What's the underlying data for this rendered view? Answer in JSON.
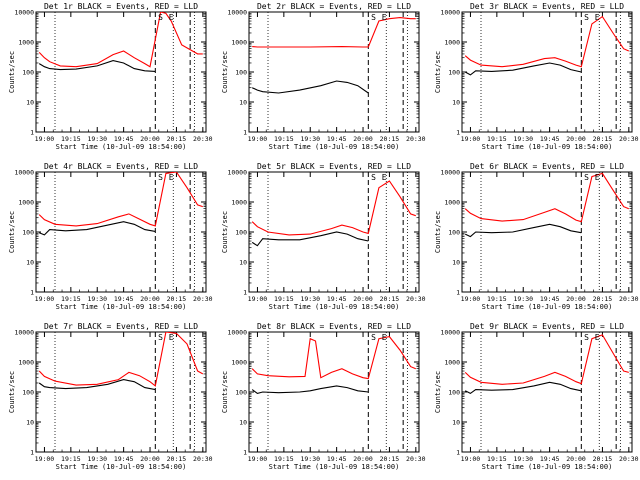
{
  "colors": {
    "events": "#000000",
    "lld": "#ff0000",
    "background": "#ffffff",
    "axes": "#000000"
  },
  "start_time_label": "Start Time (10-Jul-09 18:54:00)",
  "ylabel": "Counts/sec",
  "markers": {
    "s": "S",
    "e": "E"
  },
  "chart_data": [
    {
      "type": "line",
      "title": "Det 1r BLACK = Events, RED = LLD",
      "xlabel": "Start Time (10-Jul-09 18:54:00)",
      "ylabel": "Counts/sec",
      "y_scale": "log",
      "ylim": [
        1,
        10000
      ],
      "x_ticks": [
        "19:00",
        "19:15",
        "19:30",
        "19:45",
        "20:00",
        "20:15",
        "20:30"
      ],
      "y_ticks": [
        "1",
        "10",
        "100",
        "1000",
        "10000"
      ],
      "series": [
        {
          "name": "Events",
          "color": "#000000",
          "x": [
            18.95,
            19.0,
            19.05,
            19.15,
            19.3,
            19.5,
            19.65,
            19.75,
            19.85,
            19.95,
            20.05
          ],
          "y": [
            190,
            150,
            130,
            120,
            125,
            160,
            240,
            200,
            130,
            110,
            105
          ]
        },
        {
          "name": "LLD",
          "color": "#ff0000",
          "x": [
            18.95,
            19.0,
            19.05,
            19.15,
            19.3,
            19.5,
            19.65,
            19.75,
            19.85,
            19.95,
            20.0,
            20.1,
            20.15,
            20.2,
            20.3,
            20.45,
            20.5
          ],
          "y": [
            450,
            300,
            220,
            160,
            150,
            190,
            380,
            500,
            300,
            190,
            150,
            10000,
            9000,
            5000,
            800,
            400,
            400
          ]
        }
      ],
      "vlines_dotted": [
        19.1,
        20.22,
        20.42
      ],
      "vlines_dashed": [
        20.05,
        20.38
      ],
      "markers": [
        {
          "label": "S",
          "x": 20.1
        },
        {
          "label": "E",
          "x": 20.2
        }
      ]
    },
    {
      "type": "line",
      "title": "Det 2r BLACK = Events, RED = LLD",
      "xlabel": "Start Time (10-Jul-09 18:54:00)",
      "ylabel": "Counts/sec",
      "y_scale": "log",
      "ylim": [
        1,
        10000
      ],
      "x_ticks": [
        "19:00",
        "19:15",
        "19:30",
        "19:45",
        "20:00",
        "20:15",
        "20:30"
      ],
      "y_ticks": [
        "1",
        "10",
        "100",
        "1000",
        "10000"
      ],
      "series": [
        {
          "name": "Events",
          "color": "#000000",
          "x": [
            18.95,
            19.0,
            19.05,
            19.2,
            19.4,
            19.6,
            19.75,
            19.85,
            19.95,
            20.05
          ],
          "y": [
            30,
            25,
            22,
            20,
            25,
            35,
            50,
            45,
            35,
            20
          ]
        },
        {
          "name": "LLD",
          "color": "#ff0000",
          "x": [
            18.95,
            19.0,
            19.2,
            19.5,
            19.8,
            20.0,
            20.05,
            20.15,
            20.25,
            20.35,
            20.45,
            20.5
          ],
          "y": [
            700,
            680,
            680,
            680,
            700,
            680,
            680,
            5000,
            6000,
            6500,
            6000,
            6000
          ]
        }
      ],
      "vlines_dotted": [
        19.1,
        20.22,
        20.42
      ],
      "vlines_dashed": [
        20.05,
        20.38
      ],
      "markers": [
        {
          "label": "S",
          "x": 20.1
        },
        {
          "label": "E",
          "x": 20.2
        }
      ]
    },
    {
      "type": "line",
      "title": "Det 3r BLACK = Events, RED = LLD",
      "xlabel": "Start Time (10-Jul-09 18:54:00)",
      "ylabel": "Counts/sec",
      "y_scale": "log",
      "ylim": [
        1,
        10000
      ],
      "x_ticks": [
        "19:00",
        "19:15",
        "19:30",
        "19:45",
        "20:00",
        "20:15",
        "20:30"
      ],
      "y_ticks": [
        "1",
        "10",
        "100",
        "1000",
        "10000"
      ],
      "series": [
        {
          "name": "Events",
          "color": "#000000",
          "x": [
            18.95,
            19.0,
            19.05,
            19.2,
            19.4,
            19.6,
            19.75,
            19.85,
            19.95,
            20.05
          ],
          "y": [
            100,
            80,
            110,
            105,
            115,
            160,
            200,
            170,
            120,
            100
          ]
        },
        {
          "name": "LLD",
          "color": "#ff0000",
          "x": [
            18.95,
            19.0,
            19.1,
            19.3,
            19.5,
            19.7,
            19.8,
            19.9,
            20.0,
            20.05,
            20.15,
            20.25,
            20.35,
            20.45,
            20.5
          ],
          "y": [
            350,
            250,
            170,
            150,
            180,
            280,
            300,
            230,
            170,
            150,
            4000,
            7000,
            2000,
            600,
            500
          ]
        }
      ],
      "vlines_dotted": [
        19.1,
        20.22,
        20.42
      ],
      "vlines_dashed": [
        20.05,
        20.38
      ],
      "markers": [
        {
          "label": "S",
          "x": 20.1
        },
        {
          "label": "E",
          "x": 20.2
        }
      ]
    },
    {
      "type": "line",
      "title": "Det 4r BLACK = Events, RED = LLD",
      "xlabel": "Start Time (10-Jul-09 18:54:00)",
      "ylabel": "Counts/sec",
      "y_scale": "log",
      "ylim": [
        1,
        10000
      ],
      "x_ticks": [
        "19:00",
        "19:15",
        "19:30",
        "19:45",
        "20:00",
        "20:15",
        "20:30"
      ],
      "y_ticks": [
        "1",
        "10",
        "100",
        "1000",
        "10000"
      ],
      "series": [
        {
          "name": "Events",
          "color": "#000000",
          "x": [
            18.95,
            19.0,
            19.05,
            19.2,
            19.4,
            19.6,
            19.75,
            19.85,
            19.95,
            20.05
          ],
          "y": [
            95,
            80,
            120,
            110,
            120,
            170,
            220,
            180,
            120,
            105
          ]
        },
        {
          "name": "LLD",
          "color": "#ff0000",
          "x": [
            18.95,
            19.0,
            19.1,
            19.3,
            19.5,
            19.7,
            19.8,
            19.9,
            20.0,
            20.05,
            20.15,
            20.25,
            20.35,
            20.45,
            20.5
          ],
          "y": [
            380,
            260,
            180,
            160,
            190,
            320,
            400,
            270,
            180,
            160,
            9000,
            10000,
            3000,
            800,
            700
          ]
        }
      ],
      "vlines_dotted": [
        19.1,
        20.22,
        20.42
      ],
      "vlines_dashed": [
        20.05,
        20.38
      ],
      "markers": [
        {
          "label": "S",
          "x": 20.1
        },
        {
          "label": "E",
          "x": 20.2
        }
      ]
    },
    {
      "type": "line",
      "title": "Det 5r BLACK = Events, RED = LLD",
      "xlabel": "Start Time (10-Jul-09 18:54:00)",
      "ylabel": "Counts/sec",
      "y_scale": "log",
      "ylim": [
        1,
        10000
      ],
      "x_ticks": [
        "19:00",
        "19:15",
        "19:30",
        "19:45",
        "20:00",
        "20:15",
        "20:30"
      ],
      "y_ticks": [
        "1",
        "10",
        "100",
        "1000",
        "10000"
      ],
      "series": [
        {
          "name": "Events",
          "color": "#000000",
          "x": [
            18.95,
            19.0,
            19.05,
            19.2,
            19.4,
            19.6,
            19.75,
            19.85,
            19.95,
            20.05
          ],
          "y": [
            45,
            35,
            60,
            55,
            55,
            75,
            100,
            85,
            60,
            50
          ]
        },
        {
          "name": "LLD",
          "color": "#ff0000",
          "x": [
            18.95,
            19.0,
            19.1,
            19.3,
            19.5,
            19.7,
            19.8,
            19.9,
            20.0,
            20.05,
            20.15,
            20.25,
            20.35,
            20.45,
            20.5
          ],
          "y": [
            220,
            150,
            100,
            80,
            85,
            130,
            170,
            140,
            100,
            90,
            3000,
            5000,
            1500,
            400,
            350
          ]
        }
      ],
      "vlines_dotted": [
        19.1,
        20.22,
        20.42
      ],
      "vlines_dashed": [
        20.05,
        20.38
      ],
      "markers": [
        {
          "label": "S",
          "x": 20.1
        },
        {
          "label": "E",
          "x": 20.2
        }
      ]
    },
    {
      "type": "line",
      "title": "Det 6r BLACK = Events, RED = LLD",
      "xlabel": "Start Time (10-Jul-09 18:54:00)",
      "ylabel": "Counts/sec",
      "y_scale": "log",
      "ylim": [
        1,
        10000
      ],
      "x_ticks": [
        "19:00",
        "19:15",
        "19:30",
        "19:45",
        "20:00",
        "20:15",
        "20:30"
      ],
      "y_ticks": [
        "1",
        "10",
        "100",
        "1000",
        "10000"
      ],
      "series": [
        {
          "name": "Events",
          "color": "#000000",
          "x": [
            18.95,
            19.0,
            19.05,
            19.2,
            19.4,
            19.6,
            19.75,
            19.85,
            19.95,
            20.05
          ],
          "y": [
            85,
            70,
            100,
            95,
            100,
            140,
            180,
            150,
            110,
            95
          ]
        },
        {
          "name": "LLD",
          "color": "#ff0000",
          "x": [
            18.95,
            19.0,
            19.1,
            19.3,
            19.5,
            19.7,
            19.8,
            19.9,
            20.0,
            20.05,
            20.15,
            20.25,
            20.35,
            20.45,
            20.5
          ],
          "y": [
            600,
            420,
            280,
            230,
            260,
            450,
            600,
            400,
            250,
            220,
            7000,
            9000,
            2500,
            700,
            600
          ]
        }
      ],
      "vlines_dotted": [
        19.1,
        20.22,
        20.42
      ],
      "vlines_dashed": [
        20.05,
        20.38
      ],
      "markers": [
        {
          "label": "S",
          "x": 20.1
        },
        {
          "label": "E",
          "x": 20.2
        }
      ]
    },
    {
      "type": "line",
      "title": "Det 7r BLACK = Events, RED = LLD",
      "xlabel": "Start Time (10-Jul-09 18:54:00)",
      "ylabel": "Counts/sec",
      "y_scale": "log",
      "ylim": [
        1,
        10000
      ],
      "x_ticks": [
        "19:00",
        "19:15",
        "19:30",
        "19:45",
        "20:00",
        "20:15",
        "20:30"
      ],
      "y_ticks": [
        "1",
        "10",
        "100",
        "1000",
        "10000"
      ],
      "series": [
        {
          "name": "Events",
          "color": "#000000",
          "x": [
            18.95,
            19.0,
            19.05,
            19.2,
            19.4,
            19.6,
            19.75,
            19.85,
            19.95,
            20.05
          ],
          "y": [
            200,
            150,
            140,
            130,
            140,
            180,
            260,
            220,
            140,
            120
          ]
        },
        {
          "name": "LLD",
          "color": "#ff0000",
          "x": [
            18.95,
            19.0,
            19.1,
            19.3,
            19.5,
            19.7,
            19.8,
            19.9,
            20.0,
            20.05,
            20.15,
            20.25,
            20.35,
            20.45,
            20.5
          ],
          "y": [
            500,
            330,
            230,
            170,
            180,
            260,
            450,
            350,
            220,
            160,
            10000,
            9000,
            4000,
            500,
            400
          ]
        }
      ],
      "vlines_dotted": [
        19.1,
        20.22,
        20.42
      ],
      "vlines_dashed": [
        20.05,
        20.38
      ],
      "markers": [
        {
          "label": "S",
          "x": 20.1
        },
        {
          "label": "E",
          "x": 20.2
        }
      ]
    },
    {
      "type": "line",
      "title": "Det 8r BLACK = Events, RED = LLD",
      "xlabel": "Start Time (10-Jul-09 18:54:00)",
      "ylabel": "Counts/sec",
      "y_scale": "log",
      "ylim": [
        1,
        10000
      ],
      "x_ticks": [
        "19:00",
        "19:15",
        "19:30",
        "19:45",
        "20:00",
        "20:15",
        "20:30"
      ],
      "y_ticks": [
        "1",
        "10",
        "100",
        "1000",
        "10000"
      ],
      "series": [
        {
          "name": "Events",
          "color": "#000000",
          "x": [
            18.95,
            19.0,
            19.05,
            19.2,
            19.4,
            19.5,
            19.6,
            19.75,
            19.85,
            19.95,
            20.05
          ],
          "y": [
            120,
            90,
            100,
            95,
            100,
            110,
            130,
            160,
            140,
            110,
            100
          ]
        },
        {
          "name": "LLD",
          "color": "#ff0000",
          "x": [
            18.95,
            19.0,
            19.1,
            19.3,
            19.45,
            19.5,
            19.55,
            19.6,
            19.7,
            19.8,
            19.9,
            20.0,
            20.05,
            20.15,
            20.25,
            20.35,
            20.45,
            20.5
          ],
          "y": [
            600,
            400,
            350,
            320,
            330,
            6000,
            5000,
            300,
            450,
            600,
            400,
            300,
            280,
            6000,
            7000,
            2500,
            700,
            600
          ]
        }
      ],
      "vlines_dotted": [
        19.1,
        20.22,
        20.42
      ],
      "vlines_dashed": [
        20.05,
        20.38
      ],
      "markers": [
        {
          "label": "S",
          "x": 20.1
        },
        {
          "label": "E",
          "x": 20.2
        }
      ]
    },
    {
      "type": "line",
      "title": "Det 9r BLACK = Events, RED = LLD",
      "xlabel": "Start Time (10-Jul-09 18:54:00)",
      "ylabel": "Counts/sec",
      "y_scale": "log",
      "ylim": [
        1,
        10000
      ],
      "x_ticks": [
        "19:00",
        "19:15",
        "19:30",
        "19:45",
        "20:00",
        "20:15",
        "20:30"
      ],
      "y_ticks": [
        "1",
        "10",
        "100",
        "1000",
        "10000"
      ],
      "series": [
        {
          "name": "Events",
          "color": "#000000",
          "x": [
            18.95,
            19.0,
            19.05,
            19.2,
            19.4,
            19.6,
            19.75,
            19.85,
            19.95,
            20.05
          ],
          "y": [
            110,
            90,
            120,
            115,
            120,
            160,
            210,
            180,
            130,
            110
          ]
        },
        {
          "name": "LLD",
          "color": "#ff0000",
          "x": [
            18.95,
            19.0,
            19.1,
            19.3,
            19.5,
            19.7,
            19.8,
            19.9,
            20.0,
            20.05,
            20.15,
            20.25,
            20.35,
            20.45,
            20.5
          ],
          "y": [
            450,
            310,
            210,
            180,
            200,
            330,
            450,
            330,
            220,
            190,
            6000,
            8000,
            2000,
            500,
            450
          ]
        }
      ],
      "vlines_dotted": [
        19.1,
        20.22,
        20.42
      ],
      "vlines_dashed": [
        20.05,
        20.38
      ],
      "markers": [
        {
          "label": "S",
          "x": 20.1
        },
        {
          "label": "E",
          "x": 20.2
        }
      ]
    }
  ]
}
